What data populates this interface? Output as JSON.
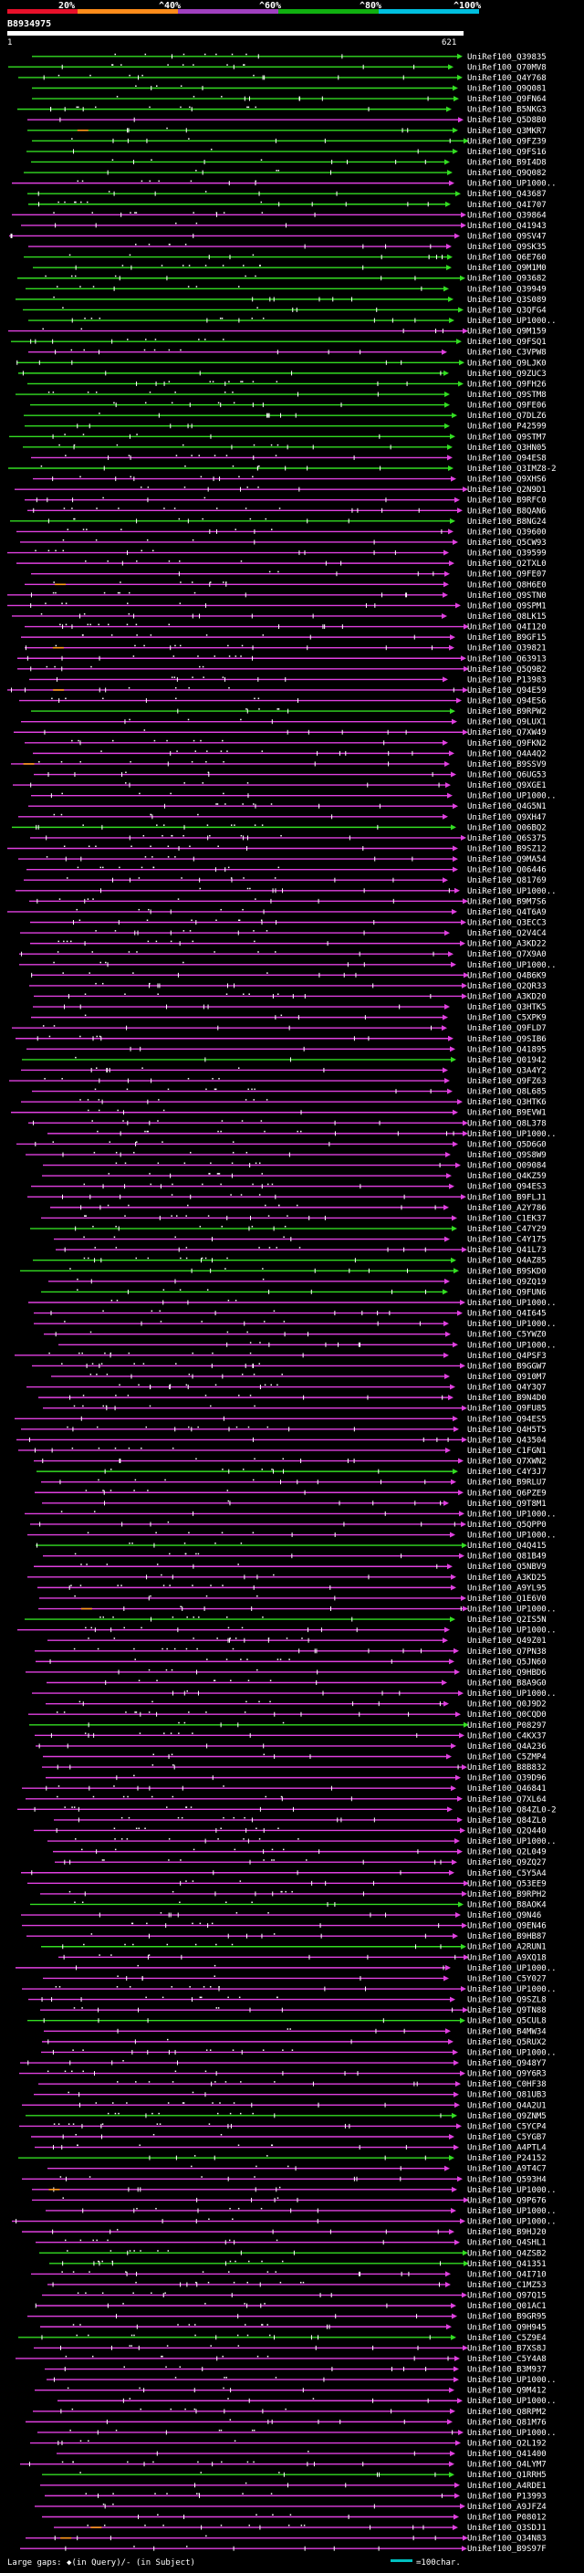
{
  "viewer": {
    "query_accession": "B8934975",
    "query_start": "1",
    "query_end": "621"
  },
  "scale": {
    "ticks": [
      "20%",
      "^40%",
      "^60%",
      "^80%",
      "^100%"
    ],
    "colors": [
      "#e8102a",
      "#ff8c1a",
      "#a040c0",
      "#10b010",
      "#00c0e0"
    ]
  },
  "legend": {
    "gaps_label": "Large gaps: ◆(in Query)/- (in Subject)",
    "scale_label": "=100char."
  },
  "colors": {
    "green": "#33dd22",
    "magenta": "#e040e0",
    "orange": "#ff9a1a",
    "background": "#000000",
    "text": "#ffffff"
  },
  "chart_data": {
    "type": "alignment-overview",
    "query_length": 621,
    "hits": [
      "UniRef100_Q39835",
      "UniRef100_Q70MV8",
      "UniRef100_Q4Y768",
      "UniRef100_Q9Q081",
      "UniRef100_Q9FN64",
      "UniRef100_B5NKG3",
      "UniRef100_Q5D8B0",
      "UniRef100_Q3MKR7",
      "UniRef100_Q9FZ39",
      "UniRef100_Q9FS16",
      "UniRef100_B9I4D8",
      "UniRef100_Q9Q082",
      "UniRef100_UP1000..",
      "UniRef100_Q43687",
      "UniRef100_Q4I707",
      "UniRef100_Q39864",
      "UniRef100_Q41943",
      "UniRef100_Q9SV47",
      "UniRef100_Q9SK35",
      "UniRef100_Q6E760",
      "UniRef100_Q9M1M0",
      "UniRef100_Q93682",
      "UniRef100_Q39949",
      "UniRef100_Q3S089",
      "UniRef100_Q3QFG4",
      "UniRef100_UP1000..",
      "UniRef100_Q9M159",
      "UniRef100_Q9FSQ1",
      "UniRef100_C3VPW8",
      "UniRef100_Q9LJK0",
      "UniRef100_Q9ZUC3",
      "UniRef100_Q9FH26",
      "UniRef100_Q9STM8",
      "UniRef100_Q9FE06",
      "UniRef100_Q7DLZ6",
      "UniRef100_P42599",
      "UniRef100_Q9STM7",
      "UniRef100_Q3HN05",
      "UniRef100_Q94ES8",
      "UniRef100_Q3IMZ8-2",
      "UniRef100_Q9XHS6",
      "UniRef100_Q2N9D1",
      "UniRef100_B9RFC0",
      "UniRef100_B8QAN6",
      "UniRef100_B8NG24",
      "UniRef100_Q39600",
      "UniRef100_Q5CW93",
      "UniRef100_Q39599",
      "UniRef100_Q2TXL0",
      "UniRef100_Q9FE07",
      "UniRef100_Q8H6E0",
      "UniRef100_Q9STN0",
      "UniRef100_Q9SPM1",
      "UniRef100_Q8LK15",
      "UniRef100_Q4I120",
      "UniRef100_B9GF15",
      "UniRef100_Q39821",
      "UniRef100_Q63913",
      "UniRef100_Q5Q9B2",
      "UniRef100_P13983",
      "UniRef100_Q94E59",
      "UniRef100_Q94ES6",
      "UniRef100_B9RPW2",
      "UniRef100_Q9LUX1",
      "UniRef100_Q7XW49",
      "UniRef100_Q9FKN2",
      "UniRef100_Q4A4Q2",
      "UniRef100_B9SSV9",
      "UniRef100_Q6UG53",
      "UniRef100_Q9XGE1",
      "UniRef100_UP1000..",
      "UniRef100_Q4G5N1",
      "UniRef100_Q9XH47",
      "UniRef100_Q06BQ2",
      "UniRef100_Q6S375",
      "UniRef100_B9SZ12",
      "UniRef100_Q9MA54",
      "UniRef100_Q06446",
      "UniRef100_Q81769",
      "UniRef100_UP1000..",
      "UniRef100_B9M7S6",
      "UniRef100_Q4T6A9",
      "UniRef100_Q3ECC3",
      "UniRef100_Q2V4C4",
      "UniRef100_A3KD22",
      "UniRef100_Q7X9A0",
      "UniRef100_UP1000..",
      "UniRef100_Q4B6K9",
      "UniRef100_Q2QR33",
      "UniRef100_A3KD20",
      "UniRef100_Q3HTK5",
      "UniRef100_C5XPK9",
      "UniRef100_Q9FLD7",
      "UniRef100_Q9SIB6",
      "UniRef100_Q41895",
      "UniRef100_Q01942",
      "UniRef100_Q3A4Y2",
      "UniRef100_Q9FZ63",
      "UniRef100_Q8L685",
      "UniRef100_Q3HTK6",
      "UniRef100_B9EVW1",
      "UniRef100_Q8L378",
      "UniRef100_UP1000..",
      "UniRef100_Q5D6G0",
      "UniRef100_Q9S8W9",
      "UniRef100_Q09084",
      "UniRef100_Q4KZ59",
      "UniRef100_Q94ES3",
      "UniRef100_B9FLJ1",
      "UniRef100_A2Y786",
      "UniRef100_C1EK37",
      "UniRef100_C47Y29",
      "UniRef100_C4Y175",
      "UniRef100_Q41L73",
      "UniRef100_Q4AZ85",
      "UniRef100_B9SKD0",
      "UniRef100_Q9ZQ19",
      "UniRef100_Q9FUN6",
      "UniRef100_UP1000..",
      "UniRef100_Q4I645",
      "UniRef100_UP1000..",
      "UniRef100_C5YWZ0",
      "UniRef100_UP1000..",
      "UniRef100_Q4PSF3",
      "UniRef100_B9GGW7",
      "UniRef100_Q910M7",
      "UniRef100_Q4Y3Q7",
      "UniRef100_B9N4D0",
      "UniRef100_Q9FU85",
      "UniRef100_Q94ES5",
      "UniRef100_Q4H5T5",
      "UniRef100_Q43504",
      "UniRef100_C1FGN1",
      "UniRef100_Q7XWN2",
      "UniRef100_C4Y3J7",
      "UniRef100_B9RLU7",
      "UniRef100_Q6PZE9",
      "UniRef100_Q9T8M1",
      "UniRef100_UP1000..",
      "UniRef100_Q5QPP0",
      "UniRef100_UP1000..",
      "UniRef100_Q4Q415",
      "UniRef100_Q81B49",
      "UniRef100_Q5NBV9",
      "UniRef100_A3KD25",
      "UniRef100_A9YL95",
      "UniRef100_Q1E6V0",
      "UniRef100_UP1000..",
      "UniRef100_Q2IS5N",
      "UniRef100_UP1000..",
      "UniRef100_Q49Z01",
      "UniRef100_Q7PN38",
      "UniRef100_Q5JN60",
      "UniRef100_Q9HBD6",
      "UniRef100_B8A9G0",
      "UniRef100_UP1000..",
      "UniRef100_Q0J9D2",
      "UniRef100_Q0CQD0",
      "UniRef100_P08297",
      "UniRef100_C4KX37",
      "UniRef100_Q4A236",
      "UniRef100_C5ZMP4",
      "UniRef100_B8B832",
      "UniRef100_Q39D96",
      "UniRef100_Q46841",
      "UniRef100_Q7XL64",
      "UniRef100_Q84ZL0-2",
      "UniRef100_Q84ZL0",
      "UniRef100_Q2Q440",
      "UniRef100_UP1000..",
      "UniRef100_Q2L049",
      "UniRef100_Q9ZQ27",
      "UniRef100_C5Y5A4",
      "UniRef100_Q53EE9",
      "UniRef100_B9RPH2",
      "UniRef100_B8AOK4",
      "UniRef100_Q9N46",
      "UniRef100_Q9EN46",
      "UniRef100_B9HB87",
      "UniRef100_A2RUN1",
      "UniRef100_A9XQ18",
      "UniRef100_UP1000..",
      "UniRef100_C5Y027",
      "UniRef100_UP1000..",
      "UniRef100_Q9SZL8",
      "UniRef100_Q9TN88",
      "UniRef100_Q5CUL8",
      "UniRef100_B4MW34",
      "UniRef100_Q5RUX2",
      "UniRef100_UP1000..",
      "UniRef100_Q948Y7",
      "UniRef100_Q9Y6R3",
      "UniRef100_C0HF38",
      "UniRef100_Q81UB3",
      "UniRef100_Q4A2U1",
      "UniRef100_Q9ZNM5",
      "UniRef100_C5YCP4",
      "UniRef100_C5YGB7",
      "UniRef100_A4PTL4",
      "UniRef100_P24152",
      "UniRef100_A9T4C7",
      "UniRef100_Q593H4",
      "UniRef100_UP1000..",
      "UniRef100_Q9P676",
      "UniRef100_UP1000..",
      "UniRef100_UP1000..",
      "UniRef100_B9HJ20",
      "UniRef100_Q4SHL1",
      "UniRef100_Q4ZSB2",
      "UniRef100_Q41351",
      "UniRef100_Q4I710",
      "UniRef100_C1MZ53",
      "UniRef100_Q97Q15",
      "UniRef100_Q01AC1",
      "UniRef100_B9GR95",
      "UniRef100_Q9H945",
      "UniRef100_C5Z9E4",
      "UniRef100_B7XS8J",
      "UniRef100_C5Y4A8",
      "UniRef100_B3M937",
      "UniRef100_UP1000..",
      "UniRef100_Q9M412",
      "UniRef100_UP1000..",
      "UniRef100_Q8RPM2",
      "UniRef100_Q81M76",
      "UniRef100_UP1000..",
      "UniRef100_Q2L192",
      "UniRef100_Q41400",
      "UniRef100_Q4LYM7",
      "UniRef100_Q1RRH5",
      "UniRef100_A4RDE1",
      "UniRef100_P13993",
      "UniRef100_A9JFZ4",
      "UniRef100_P08012",
      "UniRef100_Q3SDJ1",
      "UniRef100_Q34N83",
      "UniRef100_B9S97F"
    ]
  }
}
